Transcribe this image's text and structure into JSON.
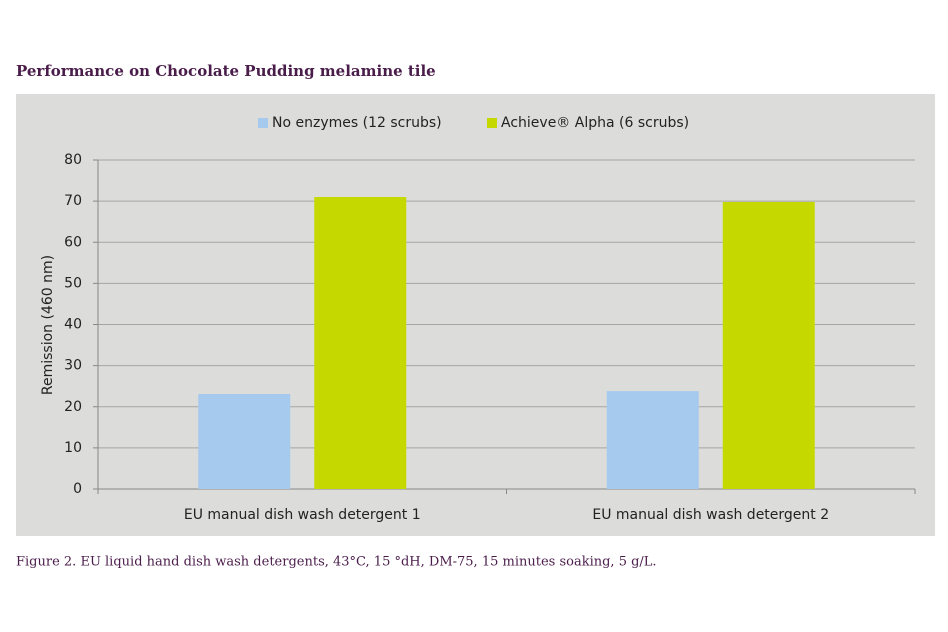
{
  "chart_data": {
    "type": "bar",
    "title": "Performance on Chocolate Pudding melamine tile",
    "caption": "Figure 2. EU liquid hand dish wash detergents, 43°C, 15 °dH, DM-75, 15 minutes soaking, 5 g/L.",
    "y_label": "Remission (460 nm)",
    "categories": [
      "EU manual dish wash detergent 1",
      "EU manual dish wash detergent 2"
    ],
    "series": [
      {
        "name": "No enzymes (12 scrubs)",
        "color": "#a6c9ee",
        "values": [
          23.1,
          23.8
        ]
      },
      {
        "name": "Achieve® Alpha (6 scrubs)",
        "color": "#c5d900",
        "values": [
          71,
          69.8
        ]
      }
    ],
    "ylim": [
      0,
      80
    ],
    "yticks": [
      0,
      10,
      20,
      30,
      40,
      50,
      60,
      70,
      80
    ],
    "grid": true,
    "legend": "top"
  }
}
